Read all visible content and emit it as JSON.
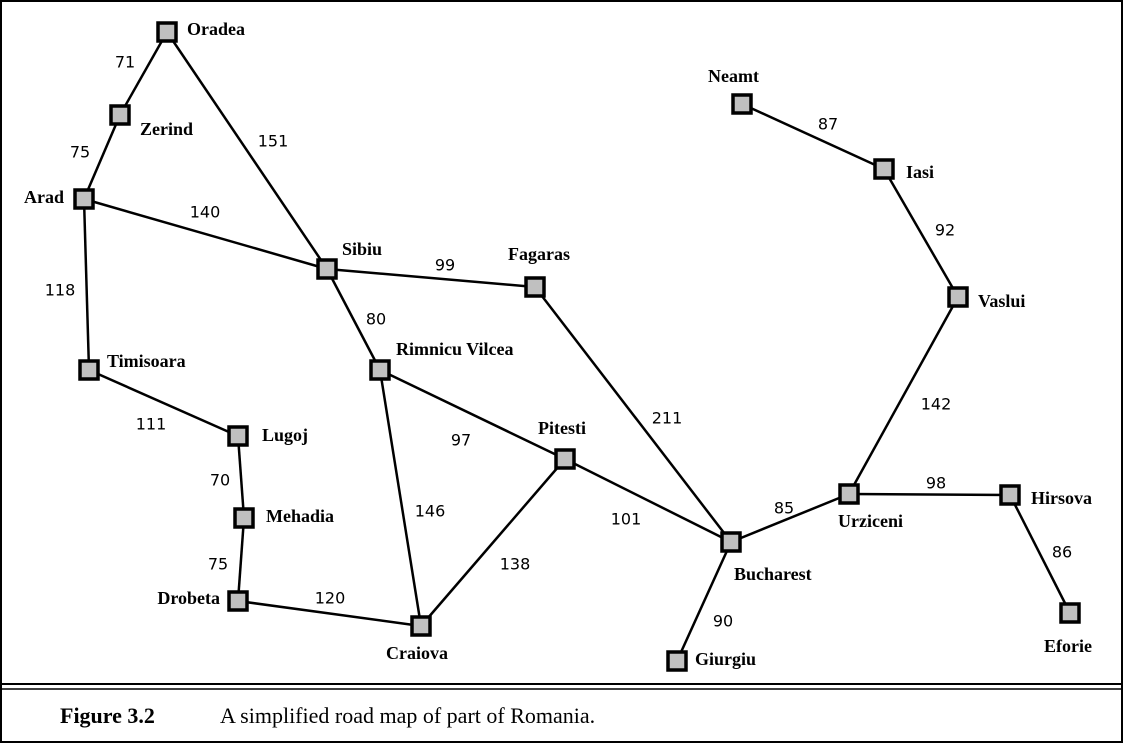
{
  "nodes": [
    {
      "label": "Oradea"
    },
    {
      "label": "Zerind"
    },
    {
      "label": "Arad"
    },
    {
      "label": "Sibiu"
    },
    {
      "label": "Fagaras"
    },
    {
      "label": "Timisoara"
    },
    {
      "label": "Rimnicu Vilcea"
    },
    {
      "label": "Lugoj"
    },
    {
      "label": "Pitesti"
    },
    {
      "label": "Mehadia"
    },
    {
      "label": "Drobeta"
    },
    {
      "label": "Craiova"
    },
    {
      "label": "Bucharest"
    },
    {
      "label": "Giurgiu"
    },
    {
      "label": "Urziceni"
    },
    {
      "label": "Neamt"
    },
    {
      "label": "Iasi"
    },
    {
      "label": "Vaslui"
    },
    {
      "label": "Hirsova"
    },
    {
      "label": "Eforie"
    }
  ],
  "edges": [
    {
      "distance": 71
    },
    {
      "distance": 75
    },
    {
      "distance": 151
    },
    {
      "distance": 140
    },
    {
      "distance": 118
    },
    {
      "distance": 99
    },
    {
      "distance": 80
    },
    {
      "distance": 111
    },
    {
      "distance": 70
    },
    {
      "distance": 75
    },
    {
      "distance": 120
    },
    {
      "distance": 146
    },
    {
      "distance": 97
    },
    {
      "distance": 138
    },
    {
      "distance": 101
    },
    {
      "distance": 211
    },
    {
      "distance": 90
    },
    {
      "distance": 85
    },
    {
      "distance": 142
    },
    {
      "distance": 98
    },
    {
      "distance": 86
    },
    {
      "distance": 87
    },
    {
      "distance": 92
    }
  ],
  "caption": {
    "figure": "Figure 3.2",
    "text": "A simplified road map of part of Romania."
  }
}
